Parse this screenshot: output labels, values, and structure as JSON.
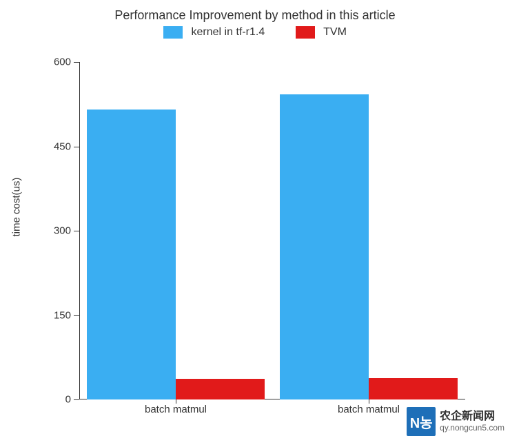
{
  "chart": {
    "type": "bar",
    "title": "Performance Improvement by method in this article",
    "title_fontsize": 18,
    "background_color": "#ffffff",
    "ylabel": "time cost(us)",
    "label_fontsize": 15,
    "ylim": [
      0,
      600
    ],
    "ytick_step": 150,
    "yticks": [
      0,
      150,
      300,
      450,
      600
    ],
    "categories": [
      "batch matmul",
      "batch matmul"
    ],
    "series": [
      {
        "name": "kernel in tf-r1.4",
        "color": "#3aaef2",
        "values": [
          516,
          543
        ]
      },
      {
        "name": "TVM",
        "color": "#e11a1a",
        "values": [
          37,
          38
        ]
      }
    ],
    "bar_width": 0.46,
    "group_gap": 0.08,
    "axis_color": "#333333",
    "text_color": "#333333"
  },
  "watermark": {
    "logo_text": "N농",
    "logo_bg": "#1e6fb8",
    "main_text": "农企新闻网",
    "sub_text": "qy.nongcun5.com"
  }
}
